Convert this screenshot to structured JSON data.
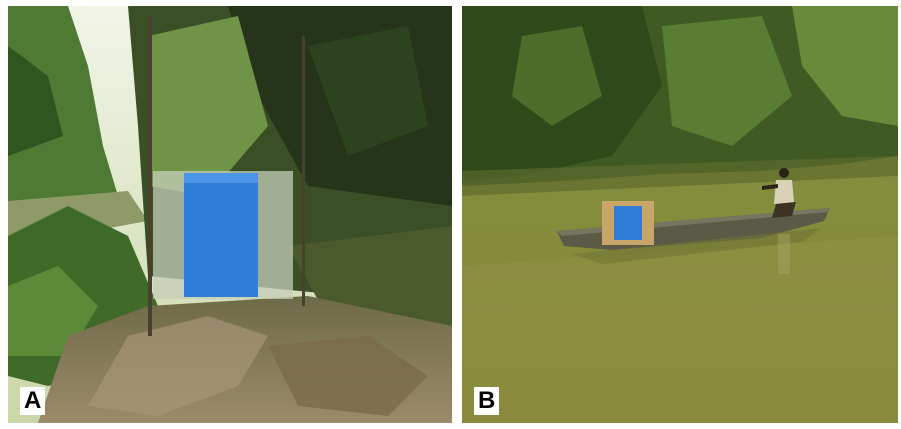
{
  "figure": {
    "panels": [
      {
        "label": "A",
        "scene": "riverbank-with-blue-screen-trap",
        "colors": {
          "screen": "#2f7fd9",
          "foliage_dark": "#2d3d1c",
          "foliage_light": "#8fb36a",
          "leaf_litter": "#8a7a5e",
          "sky": "#eef2e2"
        }
      },
      {
        "label": "B",
        "scene": "river-canoe-with-blue-screen-trap",
        "colors": {
          "screen": "#2f7fd9",
          "water": "#8a8e3e",
          "foliage": "#3f5a22",
          "canoe": "#5b5a47",
          "frame": "#c9a56a"
        }
      }
    ]
  }
}
